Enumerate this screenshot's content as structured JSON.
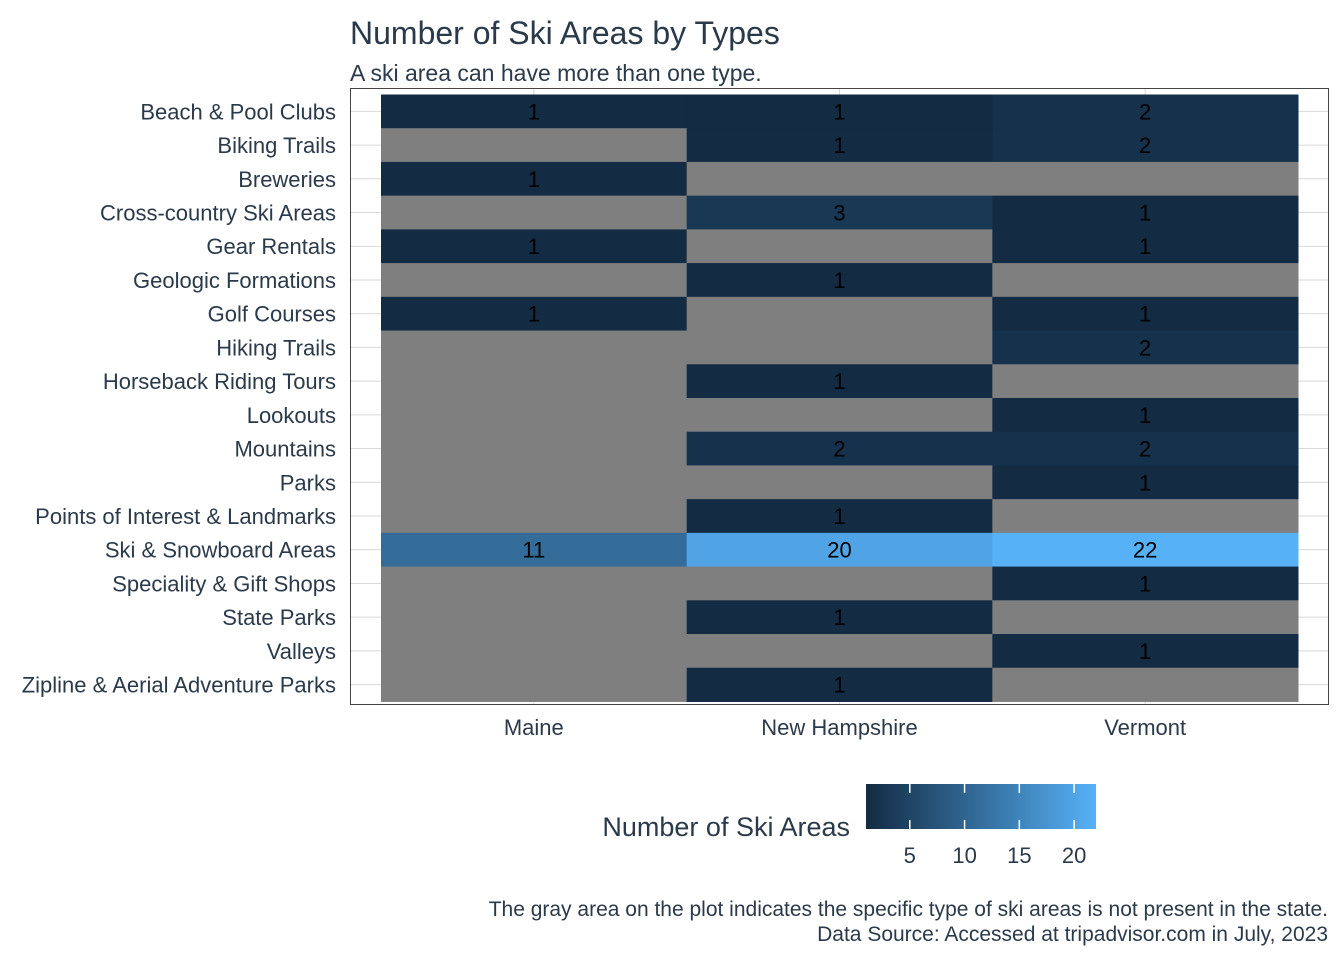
{
  "chart_data": {
    "type": "heatmap",
    "title": "Number of Ski Areas by Types",
    "subtitle": "A ski area can have more than one type.",
    "xlabel": "",
    "ylabel": "",
    "x": [
      "Maine",
      "New Hampshire",
      "Vermont"
    ],
    "y": [
      "Beach & Pool Clubs",
      "Biking Trails",
      "Breweries",
      "Cross-country Ski Areas",
      "Gear Rentals",
      "Geologic Formations",
      "Golf Courses",
      "Hiking Trails",
      "Horseback Riding Tours",
      "Lookouts",
      "Mountains",
      "Parks",
      "Points of Interest & Landmarks",
      "Ski & Snowboard Areas",
      "Speciality & Gift Shops",
      "State Parks",
      "Valleys",
      "Zipline & Aerial Adventure Parks"
    ],
    "values": [
      [
        1,
        1,
        2
      ],
      [
        null,
        1,
        2
      ],
      [
        1,
        null,
        null
      ],
      [
        null,
        3,
        1
      ],
      [
        1,
        null,
        1
      ],
      [
        null,
        1,
        null
      ],
      [
        1,
        null,
        1
      ],
      [
        null,
        null,
        2
      ],
      [
        null,
        1,
        null
      ],
      [
        null,
        null,
        1
      ],
      [
        null,
        2,
        2
      ],
      [
        null,
        null,
        1
      ],
      [
        null,
        1,
        null
      ],
      [
        11,
        20,
        22
      ],
      [
        null,
        null,
        1
      ],
      [
        null,
        1,
        null
      ],
      [
        null,
        null,
        1
      ],
      [
        null,
        1,
        null
      ]
    ],
    "missing_color": "#7f7f7f",
    "color_scale": {
      "low": "#132b43",
      "high": "#56b1f7",
      "min": 1,
      "max": 22
    },
    "legend": {
      "title": "Number of Ski Areas",
      "ticks": [
        5,
        10,
        15,
        20
      ],
      "placement": "bottom"
    },
    "caption": [
      "The gray area on the plot indicates the specific type of ski areas is not present in the state.",
      "Data Source: Accessed at tripadvisor.com in July, 2023"
    ],
    "grid": true
  }
}
